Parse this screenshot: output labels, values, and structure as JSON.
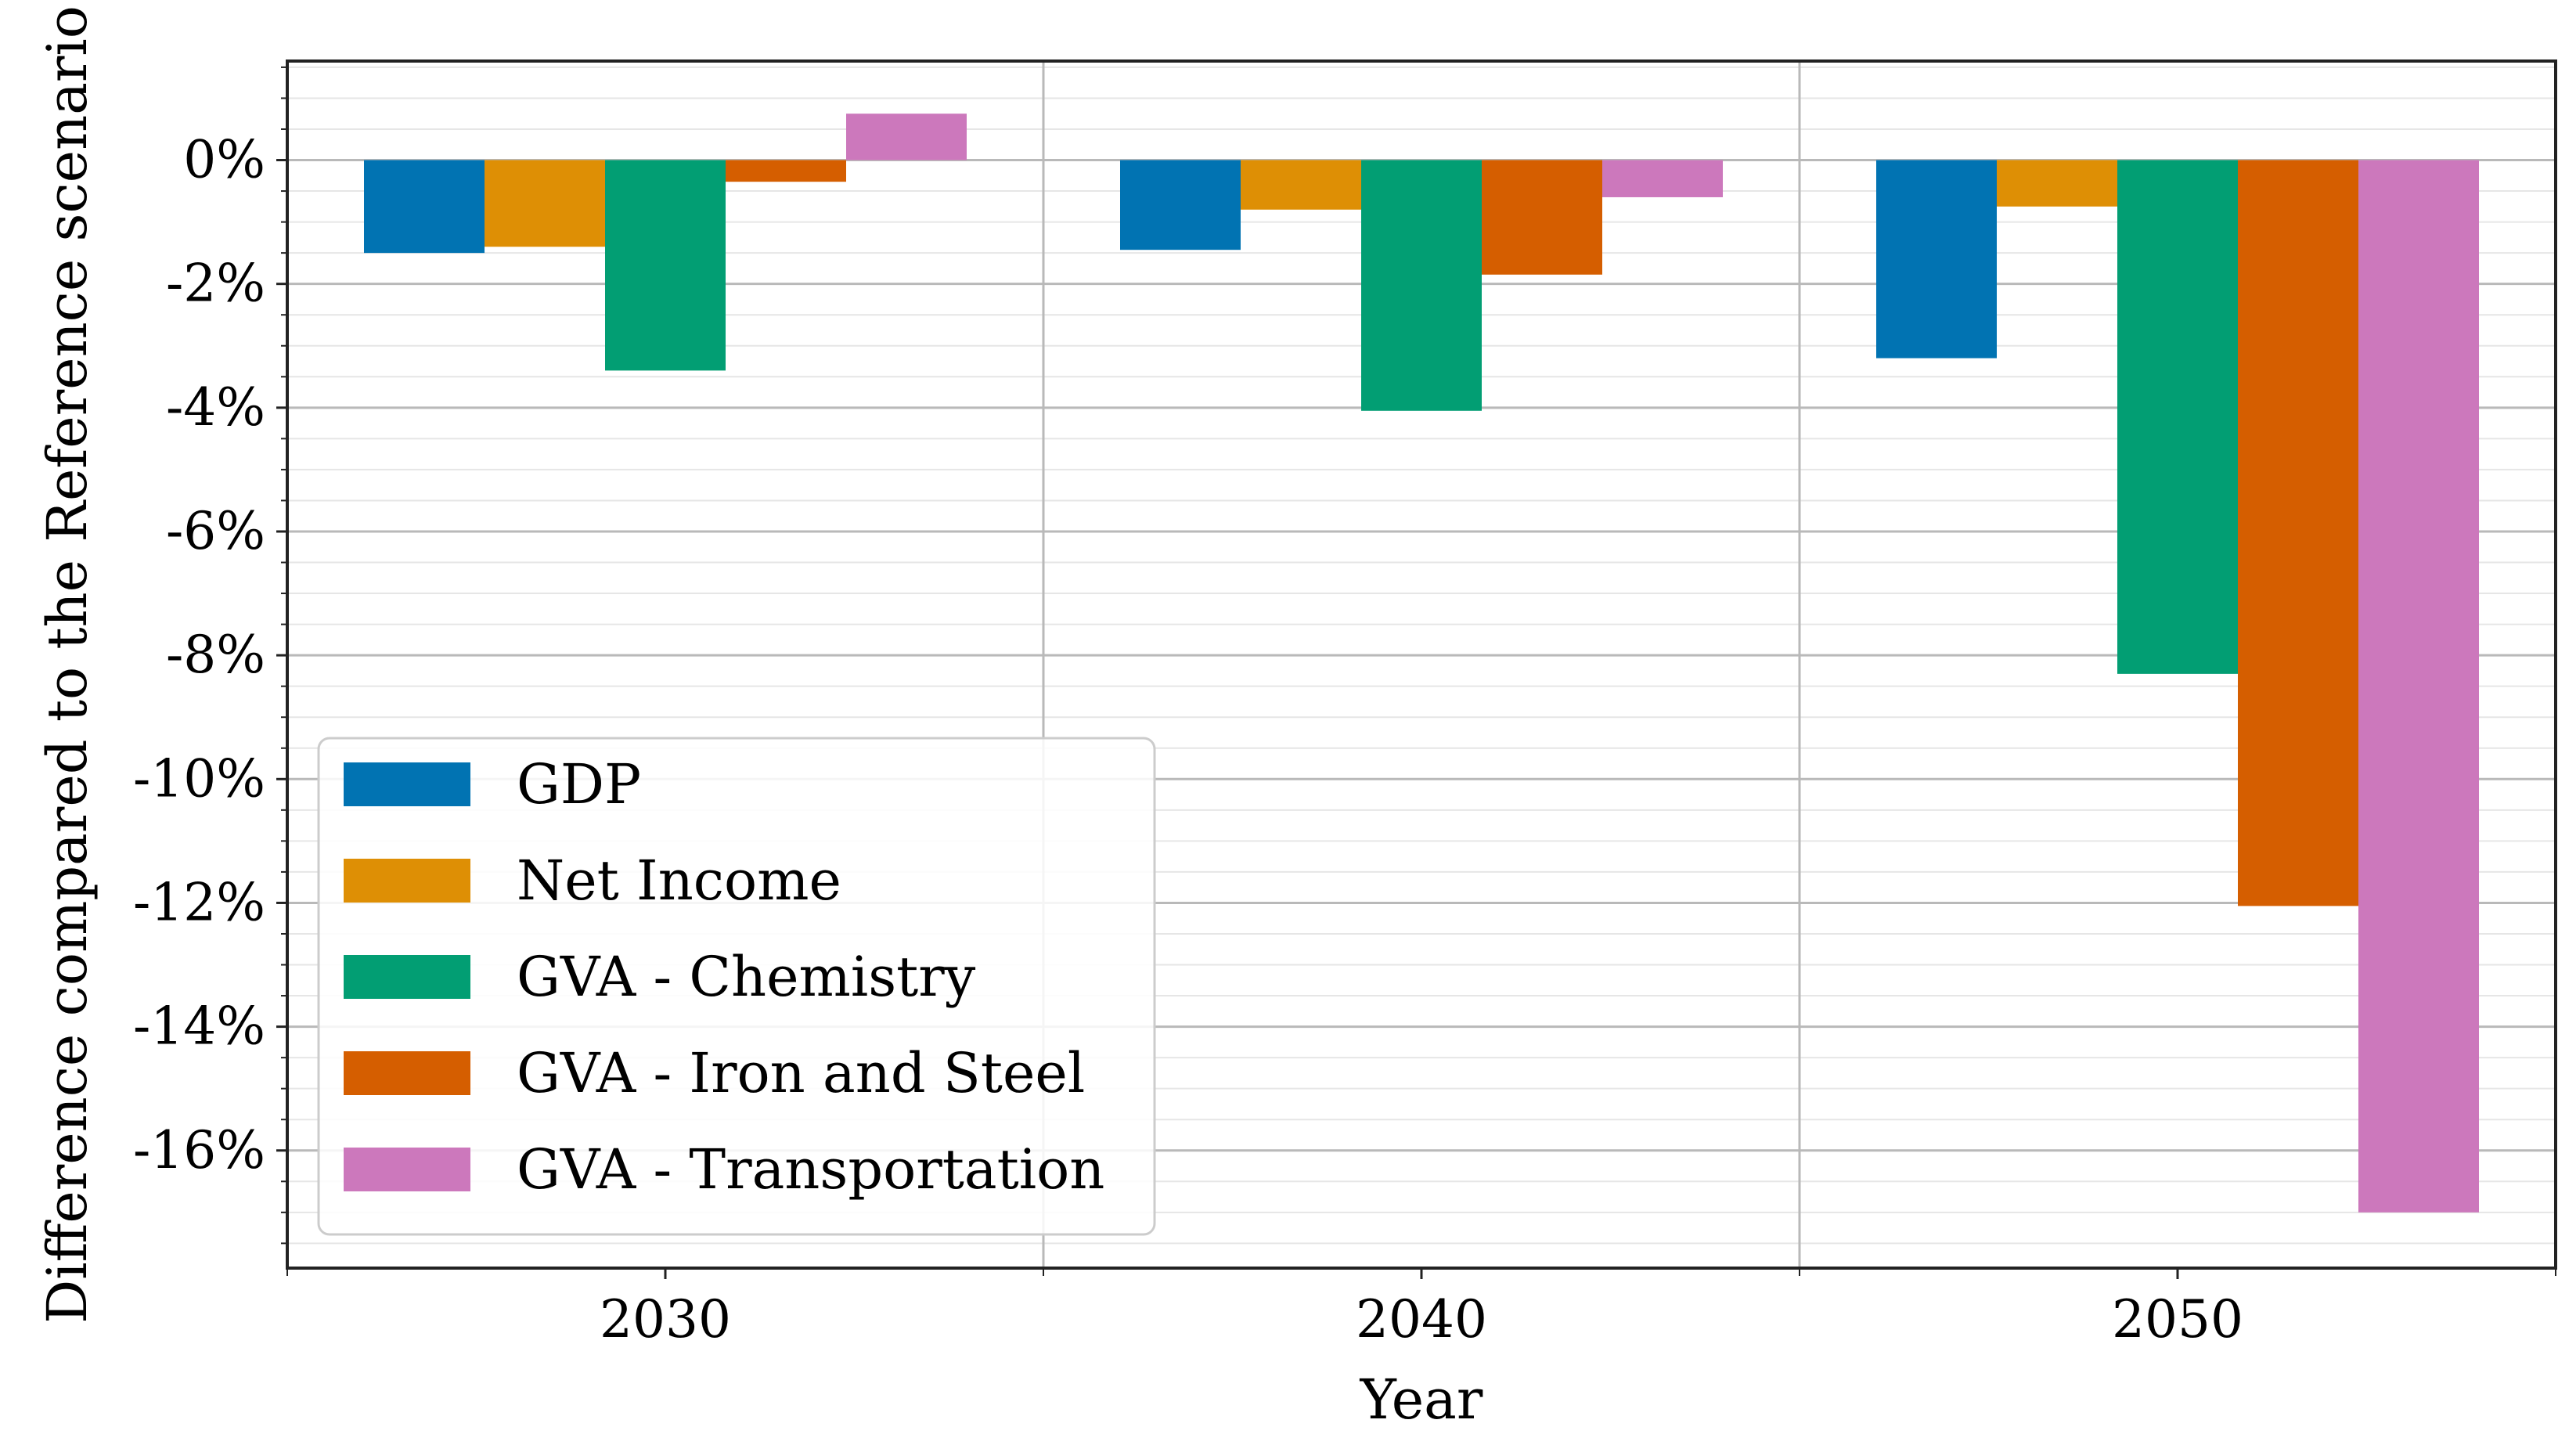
{
  "chart_data": {
    "type": "bar",
    "title": "",
    "xlabel": "Year",
    "ylabel": "Difference compared to the Reference scenario",
    "categories": [
      "2030",
      "2040",
      "2050"
    ],
    "ylim": [
      -17.9,
      1.6
    ],
    "yticks": [
      0,
      -2,
      -4,
      -6,
      -8,
      -10,
      -12,
      -14,
      -16
    ],
    "ytick_labels": [
      "0%",
      "-2%",
      "-4%",
      "-6%",
      "-8%",
      "-10%",
      "-12%",
      "-14%",
      "-16%"
    ],
    "grid": true,
    "legend_position": "bottom-left",
    "series": [
      {
        "name": "GDP",
        "color": "#0173b2",
        "values": [
          -1.5,
          -1.45,
          -3.2
        ]
      },
      {
        "name": "Net Income",
        "color": "#de8f05",
        "values": [
          -1.4,
          -0.8,
          -0.75
        ]
      },
      {
        "name": "GVA - Chemistry",
        "color": "#029e73",
        "values": [
          -3.4,
          -4.05,
          -8.3
        ]
      },
      {
        "name": "GVA - Iron and Steel",
        "color": "#d55e00",
        "values": [
          -0.35,
          -1.85,
          -12.05
        ]
      },
      {
        "name": "GVA - Transportation",
        "color": "#cc78bc",
        "values": [
          0.75,
          -0.6,
          -17.0
        ]
      }
    ]
  }
}
